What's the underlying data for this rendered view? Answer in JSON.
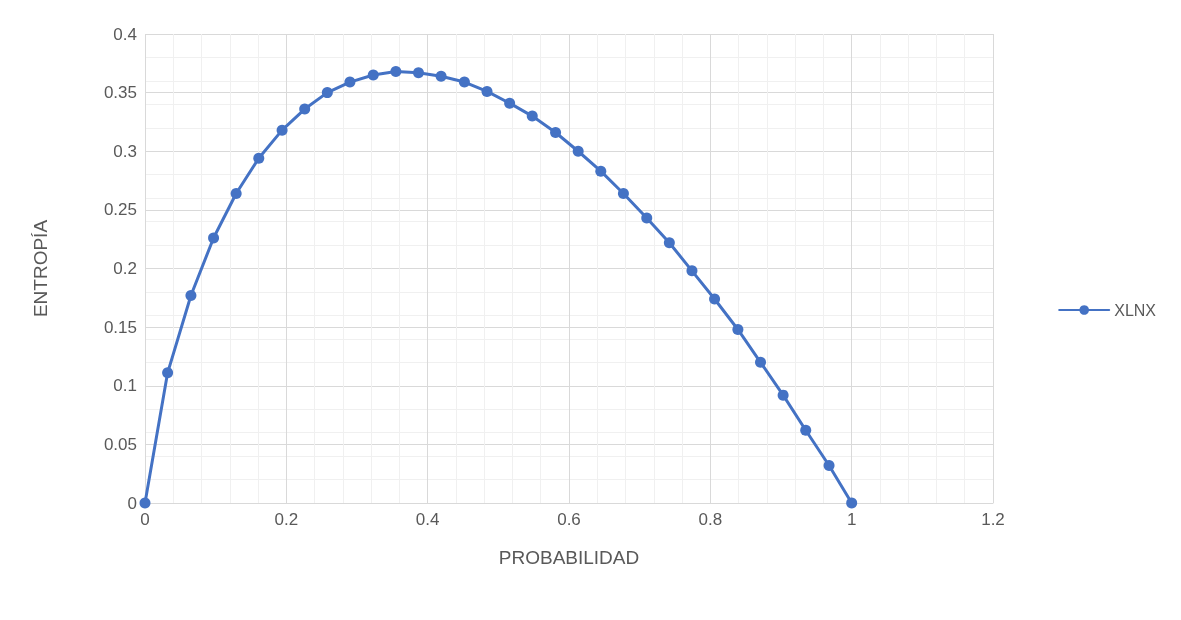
{
  "chart_data": {
    "type": "line",
    "xlabel": "PROBABILIDAD",
    "ylabel": "ENTROPÍA",
    "x": [
      0,
      0.032,
      0.065,
      0.097,
      0.129,
      0.161,
      0.194,
      0.226,
      0.258,
      0.29,
      0.323,
      0.355,
      0.387,
      0.419,
      0.452,
      0.484,
      0.516,
      0.548,
      0.581,
      0.613,
      0.645,
      0.677,
      0.71,
      0.742,
      0.774,
      0.806,
      0.839,
      0.871,
      0.903,
      0.935,
      0.968,
      1
    ],
    "series": [
      {
        "name": "XLNX",
        "color": "#4472c4",
        "values": [
          0,
          0.111,
          0.177,
          0.226,
          0.264,
          0.294,
          0.318,
          0.336,
          0.35,
          0.359,
          0.365,
          0.368,
          0.367,
          0.364,
          0.359,
          0.351,
          0.341,
          0.33,
          0.316,
          0.3,
          0.283,
          0.264,
          0.243,
          0.222,
          0.198,
          0.174,
          0.148,
          0.12,
          0.092,
          0.062,
          0.032,
          0
        ]
      }
    ],
    "xlim": [
      0,
      1.2
    ],
    "xticks": [
      0,
      0.2,
      0.4,
      0.6,
      0.8,
      1,
      1.2
    ],
    "ylim": [
      0,
      0.4
    ],
    "yticks": [
      0,
      0.05,
      0.1,
      0.15,
      0.2,
      0.25,
      0.3,
      0.35,
      0.4
    ],
    "grid": true,
    "legend": "right",
    "marker": "circle",
    "line_style": "solid"
  }
}
